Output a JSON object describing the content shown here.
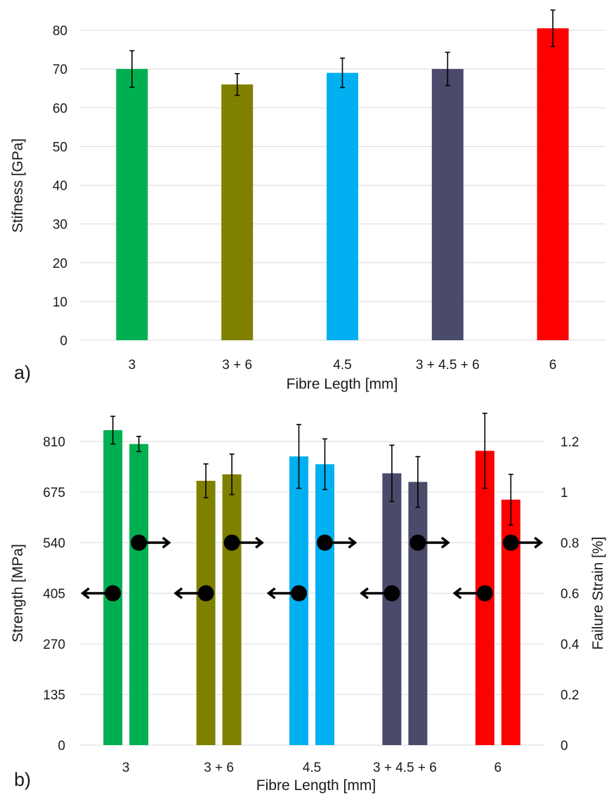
{
  "chart_data": [
    {
      "type": "bar",
      "panel_label": "a)",
      "categories": [
        "3",
        "3 + 6",
        "4.5",
        "3 + 4.5 + 6",
        "6"
      ],
      "values": [
        70,
        66,
        69,
        70,
        80.5
      ],
      "errors": [
        4.7,
        2.8,
        3.8,
        4.3,
        4.7
      ],
      "colors": [
        "#00b050",
        "#808000",
        "#00b0f0",
        "#4a4a6a",
        "#ff0000"
      ],
      "xlabel": "Fibre Legth [mm]",
      "ylabel": "Stifness [GPa]",
      "ylim": [
        0,
        80
      ],
      "yticks": [
        "0",
        "10",
        "20",
        "30",
        "40",
        "50",
        "60",
        "70",
        "80"
      ],
      "grid": true
    },
    {
      "type": "bar",
      "panel_label": "b)",
      "categories": [
        "3",
        "3 + 6",
        "4.5",
        "3 + 4.5 + 6",
        "6"
      ],
      "colors": [
        "#00b050",
        "#808000",
        "#00b0f0",
        "#4a4a6a",
        "#ff0000"
      ],
      "series": [
        {
          "axis": "left",
          "values": [
            840,
            705,
            770,
            725,
            785
          ],
          "errors": [
            37,
            45,
            85,
            75,
            100
          ]
        },
        {
          "axis": "right",
          "values": [
            1.19,
            1.07,
            1.11,
            1.04,
            0.97
          ],
          "errors": [
            0.03,
            0.08,
            0.1,
            0.1,
            0.1
          ]
        }
      ],
      "xlabel": "Fibre Length [mm]",
      "ylabel_left": "Strength [MPa]",
      "ylabel_right": "Failure Strain [%]",
      "ylim_left": [
        0,
        810
      ],
      "ylim_right": [
        0,
        1.2
      ],
      "yticks_left": [
        "0",
        "135",
        "270",
        "405",
        "540",
        "675",
        "810"
      ],
      "yticks_right": [
        "0",
        "0.2",
        "0.4",
        "0.6",
        "0.8",
        "1",
        "1.2"
      ],
      "axis_markers": [
        {
          "value": 405,
          "axis": "left",
          "direction": "left"
        },
        {
          "value": 540,
          "axis": "left",
          "direction": "right"
        }
      ],
      "grid": true
    }
  ]
}
